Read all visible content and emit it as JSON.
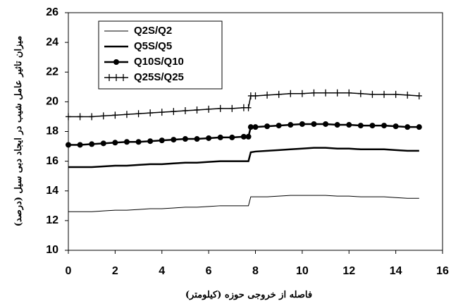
{
  "chart_data": {
    "type": "line",
    "x_label": "فاصله از خروجی حوزه (کیلومتر)",
    "y_label": "میزان تاثیر عامل شیب در ایجاد دبی سیل (درصد)",
    "x": [
      0,
      0.5,
      1,
      1.5,
      2,
      2.5,
      3,
      3.5,
      4,
      4.5,
      5,
      5.5,
      6,
      6.5,
      7,
      7.5,
      7.7,
      7.8,
      8,
      8.5,
      9,
      9.5,
      10,
      10.5,
      11,
      11.5,
      12,
      12.5,
      13,
      13.5,
      14,
      14.5,
      15
    ],
    "series": [
      {
        "name": "Q2S/Q2",
        "color": "#000000",
        "width": 1,
        "marker": "none",
        "values": [
          12.6,
          12.6,
          12.6,
          12.65,
          12.7,
          12.7,
          12.75,
          12.8,
          12.8,
          12.85,
          12.9,
          12.9,
          12.95,
          13.0,
          13.0,
          13.0,
          13.0,
          13.6,
          13.6,
          13.6,
          13.65,
          13.7,
          13.7,
          13.7,
          13.7,
          13.65,
          13.65,
          13.6,
          13.6,
          13.6,
          13.55,
          13.5,
          13.5
        ]
      },
      {
        "name": "Q5S/Q5",
        "color": "#000000",
        "width": 2.5,
        "marker": "none",
        "values": [
          15.6,
          15.6,
          15.6,
          15.65,
          15.7,
          15.7,
          15.75,
          15.8,
          15.8,
          15.85,
          15.9,
          15.9,
          15.95,
          16.0,
          16.0,
          16.0,
          16.0,
          16.6,
          16.65,
          16.7,
          16.75,
          16.8,
          16.85,
          16.9,
          16.9,
          16.85,
          16.85,
          16.8,
          16.8,
          16.8,
          16.75,
          16.7,
          16.7
        ]
      },
      {
        "name": "Q10S/Q10",
        "color": "#000000",
        "width": 2.5,
        "marker": "circle",
        "values": [
          17.1,
          17.1,
          17.15,
          17.2,
          17.25,
          17.3,
          17.3,
          17.35,
          17.4,
          17.45,
          17.5,
          17.5,
          17.55,
          17.6,
          17.6,
          17.65,
          17.65,
          18.3,
          18.3,
          18.35,
          18.4,
          18.45,
          18.5,
          18.5,
          18.5,
          18.45,
          18.45,
          18.4,
          18.4,
          18.4,
          18.35,
          18.3,
          18.3
        ]
      },
      {
        "name": "Q25S/Q25",
        "color": "#000000",
        "width": 1.5,
        "marker": "plus",
        "values": [
          19.0,
          19.0,
          19.0,
          19.05,
          19.1,
          19.15,
          19.2,
          19.25,
          19.3,
          19.35,
          19.4,
          19.45,
          19.5,
          19.55,
          19.55,
          19.6,
          19.6,
          20.4,
          20.4,
          20.45,
          20.5,
          20.55,
          20.55,
          20.6,
          20.6,
          20.6,
          20.6,
          20.55,
          20.5,
          20.5,
          20.5,
          20.45,
          20.4
        ]
      }
    ],
    "xlim": [
      0,
      16
    ],
    "xticks": [
      0,
      2,
      4,
      6,
      8,
      10,
      12,
      14,
      16
    ],
    "ylim": [
      10,
      26
    ],
    "yticks": [
      10,
      12,
      14,
      16,
      18,
      20,
      22,
      24,
      26
    ],
    "legend": "upper left"
  }
}
